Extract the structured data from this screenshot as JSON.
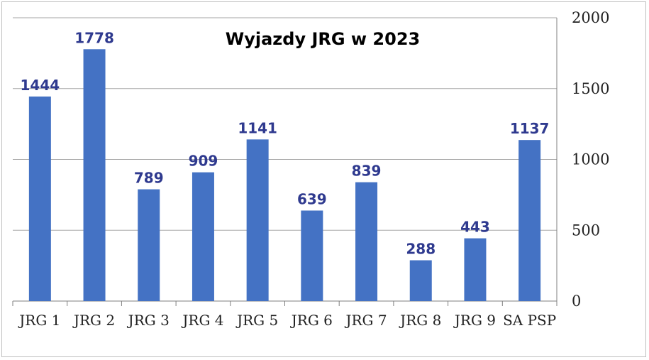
{
  "chart_data": {
    "type": "bar",
    "title": "Wyjazdy JRG w 2023",
    "categories": [
      "JRG 1",
      "JRG 2",
      "JRG 3",
      "JRG 4",
      "JRG 5",
      "JRG 6",
      "JRG 7",
      "JRG 8",
      "JRG 9",
      "SA PSP"
    ],
    "values": [
      1444,
      1778,
      789,
      909,
      1141,
      639,
      839,
      288,
      443,
      1137
    ],
    "xlabel": "",
    "ylabel": "",
    "ylim": [
      0,
      2000
    ],
    "yticks": [
      0,
      500,
      1000,
      1500,
      2000
    ],
    "y_axis_side": "right",
    "grid": true,
    "legend": false,
    "colors": {
      "bar": "#4472c4",
      "data_label": "#2f3a8f",
      "grid": "#a6a6a6"
    }
  }
}
